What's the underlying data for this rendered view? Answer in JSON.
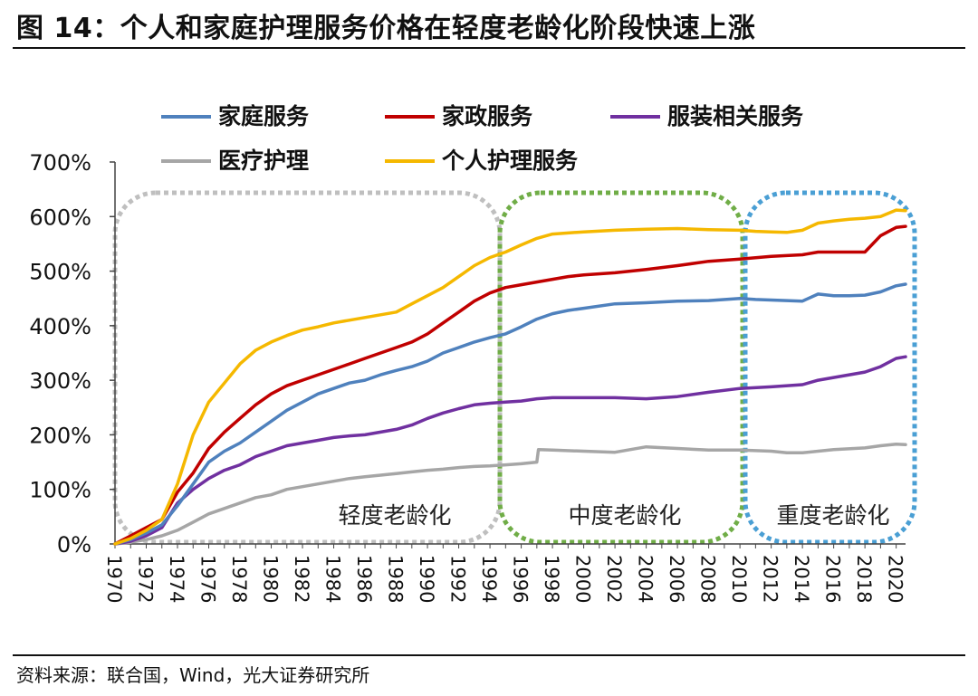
{
  "header": {
    "title": "图 14：个人和家庭护理服务价格在轻度老龄化阶段快速上涨"
  },
  "footer": {
    "source": "资料来源：联合国，Wind，光大证券研究所"
  },
  "chart_data": {
    "type": "line",
    "title": "个人和家庭护理服务价格在轻度老龄化阶段快速上涨",
    "xlabel": "",
    "ylabel": "",
    "xlim": [
      1970,
      2020.6
    ],
    "ylim": [
      0,
      700
    ],
    "y_ticks": [
      0,
      100,
      200,
      300,
      400,
      500,
      600,
      700
    ],
    "y_tick_labels": [
      "0%",
      "100%",
      "200%",
      "300%",
      "400%",
      "500%",
      "600%",
      "700%"
    ],
    "x_ticks": [
      "1970",
      "1972",
      "1974",
      "1976",
      "1978",
      "1980",
      "1982",
      "1984",
      "1986",
      "1988",
      "1990",
      "1992",
      "1994",
      "1996",
      "1998",
      "2000",
      "2002",
      "2004",
      "2006",
      "2008",
      "2010",
      "2012",
      "2014",
      "2016",
      "2018",
      "2020"
    ],
    "legend_position": "top",
    "series": [
      {
        "name": "家庭服务",
        "color": "#4f81bd",
        "x": [
          1970,
          1971,
          1972,
          1973,
          1974,
          1975,
          1976,
          1977,
          1978,
          1979,
          1980,
          1981,
          1982,
          1983,
          1984,
          1985,
          1986,
          1987,
          1988,
          1989,
          1990,
          1991,
          1992,
          1993,
          1994,
          1995,
          1996,
          1997,
          1998,
          1999,
          2000,
          2002,
          2004,
          2006,
          2008,
          2010,
          2011,
          2012,
          2013,
          2014,
          2015,
          2016,
          2017,
          2018,
          2019,
          2020,
          2020.6
        ],
        "values": [
          0,
          8,
          20,
          35,
          70,
          110,
          150,
          170,
          185,
          205,
          225,
          245,
          260,
          275,
          285,
          295,
          300,
          310,
          318,
          325,
          335,
          350,
          360,
          370,
          378,
          385,
          398,
          412,
          422,
          428,
          432,
          440,
          442,
          445,
          446,
          450,
          448,
          447,
          446,
          445,
          458,
          455,
          455,
          456,
          462,
          473,
          476
        ]
      },
      {
        "name": "家政服务",
        "color": "#c00000",
        "x": [
          1970,
          1971,
          1972,
          1973,
          1974,
          1975,
          1976,
          1977,
          1978,
          1979,
          1980,
          1981,
          1982,
          1983,
          1984,
          1985,
          1986,
          1987,
          1988,
          1989,
          1990,
          1991,
          1992,
          1993,
          1994,
          1995,
          1996,
          1997,
          1998,
          1999,
          2000,
          2002,
          2004,
          2006,
          2008,
          2010,
          2012,
          2014,
          2015,
          2016,
          2017,
          2018,
          2019,
          2020,
          2020.6
        ],
        "values": [
          0,
          15,
          30,
          45,
          95,
          130,
          175,
          205,
          230,
          255,
          275,
          290,
          300,
          310,
          320,
          330,
          340,
          350,
          360,
          370,
          385,
          405,
          425,
          445,
          460,
          470,
          475,
          480,
          485,
          490,
          493,
          497,
          503,
          510,
          518,
          522,
          527,
          530,
          535,
          535,
          535,
          535,
          565,
          580,
          582
        ]
      },
      {
        "name": "服装相关服务",
        "color": "#7030a0",
        "x": [
          1970,
          1971,
          1972,
          1973,
          1974,
          1975,
          1976,
          1977,
          1978,
          1979,
          1980,
          1981,
          1982,
          1983,
          1984,
          1985,
          1986,
          1987,
          1988,
          1989,
          1990,
          1991,
          1992,
          1993,
          1994,
          1995,
          1996,
          1997,
          1998,
          2000,
          2002,
          2004,
          2006,
          2008,
          2010,
          2012,
          2014,
          2015,
          2016,
          2017,
          2018,
          2019,
          2020,
          2020.6
        ],
        "values": [
          0,
          5,
          15,
          30,
          75,
          100,
          120,
          135,
          145,
          160,
          170,
          180,
          185,
          190,
          195,
          198,
          200,
          205,
          210,
          218,
          230,
          240,
          248,
          255,
          258,
          260,
          262,
          266,
          268,
          268,
          268,
          266,
          270,
          278,
          285,
          288,
          292,
          300,
          305,
          310,
          315,
          325,
          340,
          343
        ]
      },
      {
        "name": "医疗护理",
        "color": "#a6a6a6",
        "x": [
          1970,
          1971,
          1972,
          1973,
          1974,
          1975,
          1976,
          1977,
          1978,
          1979,
          1980,
          1981,
          1982,
          1983,
          1984,
          1985,
          1986,
          1987,
          1988,
          1989,
          1990,
          1991,
          1992,
          1993,
          1994,
          1995,
          1996,
          1997,
          1997.1,
          1998,
          2000,
          2002,
          2004,
          2006,
          2008,
          2010,
          2012,
          2013,
          2014,
          2016,
          2018,
          2019,
          2020,
          2020.6
        ],
        "values": [
          0,
          3,
          8,
          15,
          25,
          40,
          55,
          65,
          75,
          85,
          90,
          100,
          105,
          110,
          115,
          120,
          123,
          126,
          129,
          132,
          135,
          137,
          140,
          142,
          143,
          145,
          147,
          150,
          173,
          172,
          170,
          168,
          178,
          175,
          172,
          172,
          170,
          167,
          167,
          173,
          176,
          180,
          183,
          182
        ]
      },
      {
        "name": "个人护理服务",
        "color": "#f5b800",
        "x": [
          1970,
          1971,
          1972,
          1973,
          1974,
          1975,
          1976,
          1977,
          1978,
          1979,
          1980,
          1981,
          1982,
          1983,
          1984,
          1985,
          1986,
          1987,
          1988,
          1989,
          1990,
          1991,
          1992,
          1993,
          1994,
          1995,
          1996,
          1997,
          1998,
          2000,
          2002,
          2004,
          2006,
          2008,
          2010,
          2011,
          2012,
          2013,
          2014,
          2015,
          2016,
          2017,
          2018,
          2019,
          2020,
          2020.6
        ],
        "values": [
          0,
          10,
          25,
          45,
          110,
          200,
          260,
          295,
          330,
          355,
          370,
          382,
          392,
          398,
          405,
          410,
          415,
          420,
          425,
          440,
          455,
          470,
          490,
          510,
          525,
          535,
          548,
          560,
          568,
          572,
          575,
          577,
          578,
          576,
          575,
          573,
          572,
          571,
          575,
          588,
          592,
          595,
          597,
          600,
          612,
          611
        ]
      }
    ],
    "annotations": [
      {
        "label": "轻度老龄化",
        "from": 1970,
        "to": 1994.5,
        "color": "#bfbfbf"
      },
      {
        "label": "中度老龄化",
        "from": 1994.5,
        "to": 2010.5,
        "color": "#70ad47"
      },
      {
        "label": "重度老龄化",
        "from": 2010.5,
        "to": 2020.6,
        "color": "#4a9fd4"
      }
    ]
  }
}
